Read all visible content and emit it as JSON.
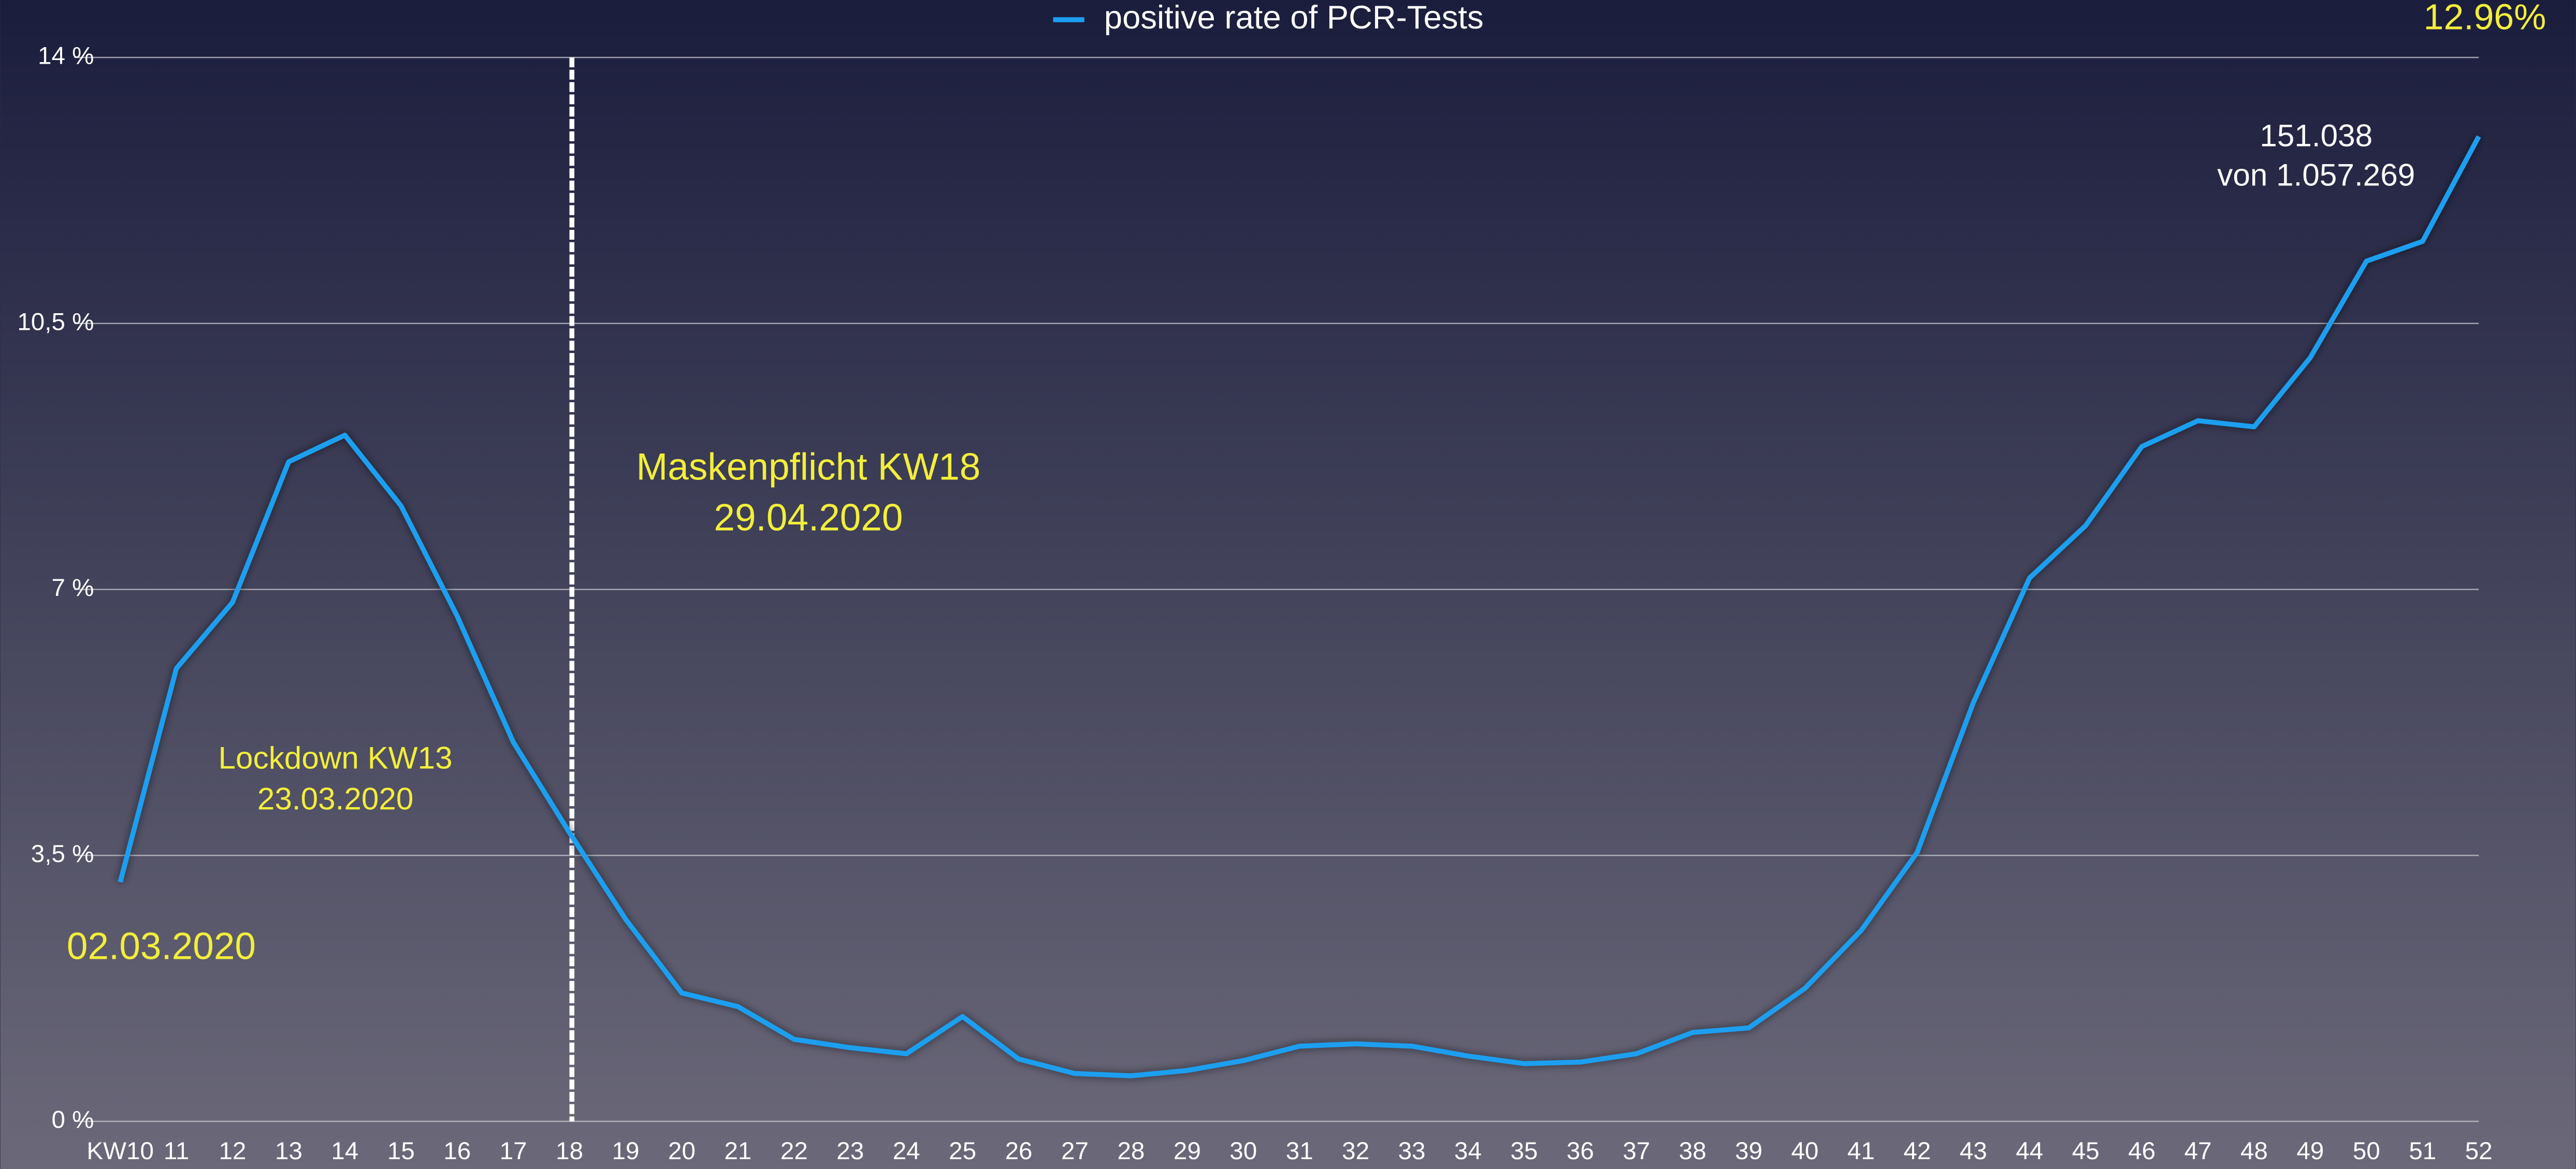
{
  "chart_data": {
    "type": "line",
    "categories": [
      "KW10",
      "11",
      "12",
      "13",
      "14",
      "15",
      "16",
      "17",
      "18",
      "19",
      "20",
      "21",
      "22",
      "23",
      "24",
      "25",
      "26",
      "27",
      "28",
      "29",
      "30",
      "31",
      "32",
      "33",
      "34",
      "35",
      "36",
      "37",
      "38",
      "39",
      "40",
      "41",
      "42",
      "43",
      "44",
      "45",
      "46",
      "47",
      "48",
      "49",
      "50",
      "51",
      "52"
    ],
    "series": [
      {
        "name": "positive rate of PCR-Tests",
        "color": "#1b9ff0",
        "values": [
          3.15,
          5.96,
          6.83,
          8.68,
          9.03,
          8.1,
          6.65,
          4.99,
          3.8,
          2.66,
          1.69,
          1.51,
          1.08,
          0.97,
          0.89,
          1.38,
          0.82,
          0.63,
          0.6,
          0.67,
          0.8,
          0.99,
          1.02,
          0.99,
          0.86,
          0.76,
          0.78,
          0.89,
          1.17,
          1.23,
          1.75,
          2.51,
          3.54,
          5.51,
          7.15,
          7.84,
          8.88,
          9.22,
          9.14,
          10.05,
          11.32,
          11.58,
          12.96
        ]
      }
    ],
    "ylim": [
      0,
      14
    ],
    "yticks": [
      {
        "value": 0,
        "label": "0 %"
      },
      {
        "value": 3.5,
        "label": "3,5 %"
      },
      {
        "value": 7,
        "label": "7 %"
      },
      {
        "value": 10.5,
        "label": "10,5 %"
      },
      {
        "value": 14,
        "label": "14 %"
      }
    ],
    "grid": true,
    "legend": "top",
    "annotations": {
      "last_value": "12.96%",
      "tests_positive": "151.038",
      "tests_total": "von 1.057.269",
      "mask_title": "Maskenpflicht KW18",
      "mask_date": "29.04.2020",
      "lockdown_title": "Lockdown KW13",
      "lockdown_date": "23.03.2020",
      "start_date": "02.03.2020"
    }
  }
}
